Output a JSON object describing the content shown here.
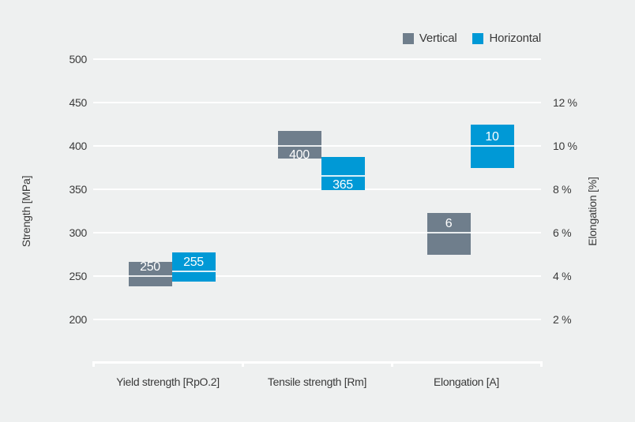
{
  "colors": {
    "background": "#eef0f0",
    "vertical": "#6f7e8c",
    "horizontal": "#0099d6",
    "grid": "#ffffff",
    "text": "#3a3a3a",
    "bar_value_text": "#ffffff"
  },
  "legend": {
    "items": [
      {
        "label": "Vertical",
        "color_key": "vertical"
      },
      {
        "label": "Horizontal",
        "color_key": "horizontal"
      }
    ]
  },
  "chart_data": {
    "type": "bar",
    "title": "",
    "categories": [
      "Yield strength [RpO.2]",
      "Tensile strength [Rm]",
      "Elongation [A]"
    ],
    "left_axis": {
      "label": "Strength [MPa]",
      "tick_labels": [
        "500",
        "450",
        "400",
        "350",
        "300",
        "250",
        "200"
      ],
      "tick_values": [
        500,
        450,
        400,
        350,
        300,
        250,
        200
      ],
      "range": [
        200,
        500
      ],
      "grid": true
    },
    "right_axis": {
      "label": "Elongation [%]",
      "tick_labels": [
        "12 %",
        "10 %",
        "8 %",
        "6 %",
        "4 %",
        "2 %"
      ],
      "tick_values": [
        12,
        10,
        8,
        6,
        4,
        2
      ],
      "range": [
        2,
        12
      ]
    },
    "series": [
      {
        "name": "Vertical",
        "values": [
          250,
          400,
          6
        ]
      },
      {
        "name": "Horizontal",
        "values": [
          255,
          365,
          10
        ]
      }
    ],
    "bars": [
      {
        "category": 0,
        "series": "Vertical",
        "axis": "strength",
        "range": [
          238,
          266
        ],
        "value": 250,
        "label": "250",
        "label_side": "above"
      },
      {
        "category": 0,
        "series": "Horizontal",
        "axis": "strength",
        "range": [
          244,
          277
        ],
        "value": 255,
        "label": "255",
        "label_side": "above"
      },
      {
        "category": 1,
        "series": "Vertical",
        "axis": "strength",
        "range": [
          385,
          417
        ],
        "value": 400,
        "label": "400",
        "label_side": "below"
      },
      {
        "category": 1,
        "series": "Horizontal",
        "axis": "strength",
        "range": [
          349,
          387
        ],
        "value": 365,
        "label": "365",
        "label_side": "below"
      },
      {
        "category": 2,
        "series": "Vertical",
        "axis": "elongation",
        "range": [
          5.0,
          6.9
        ],
        "value": 6,
        "label": "6",
        "label_side": "above"
      },
      {
        "category": 2,
        "series": "Horizontal",
        "axis": "elongation",
        "range": [
          9.0,
          11.0
        ],
        "value": 10,
        "label": "10",
        "label_side": "above"
      }
    ],
    "legend_position": "top-right",
    "grid": true
  }
}
